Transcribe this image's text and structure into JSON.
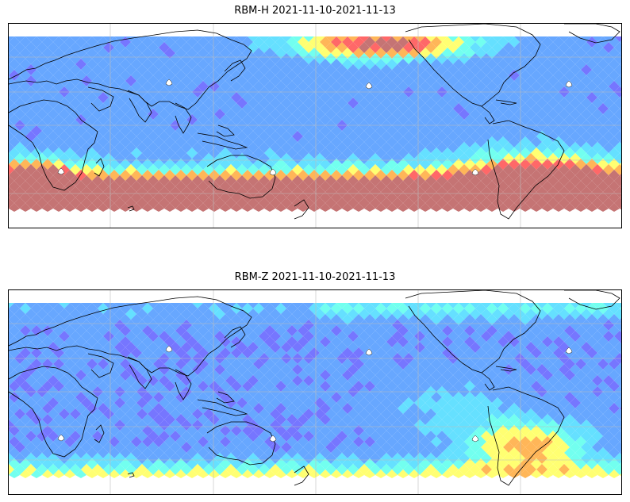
{
  "maps": [
    {
      "title": "RBM-H 2021-11-10-2021-11-13",
      "colormap": [
        "#6a6aff",
        "#5aa0ff",
        "#58ddff",
        "#66ffee",
        "#ffff66",
        "#ffb04a",
        "#ff5b5b",
        "#c06868"
      ]
    },
    {
      "title": "RBM-Z 2021-11-10-2021-11-13",
      "colormap": [
        "#6a6aff",
        "#5aa0ff",
        "#58ddff",
        "#66ffee",
        "#ffff66",
        "#ffb04a",
        "#ff5b5b",
        "#c06868"
      ]
    }
  ]
}
